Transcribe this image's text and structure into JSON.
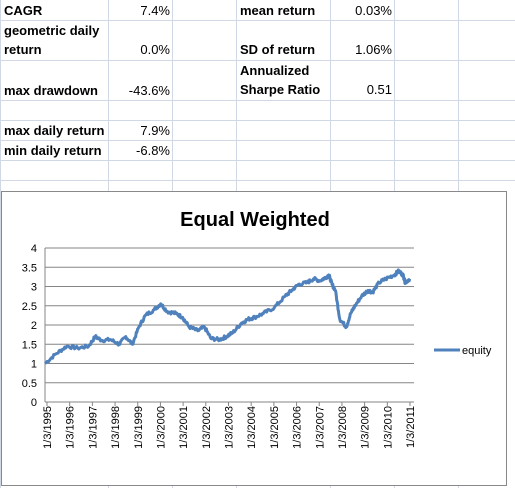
{
  "stats": {
    "cagr_label": "CAGR",
    "cagr_value": "7.4%",
    "geo_label_line1": "geometric daily",
    "geo_label_line2": "return",
    "geo_value": "0.0%",
    "maxdd_label": "max drawdown",
    "maxdd_value": "-43.6%",
    "maxret_label": "max daily return",
    "maxret_value": "7.9%",
    "minret_label": "min daily return",
    "minret_value": "-6.8%",
    "mean_label": "mean return",
    "mean_value": "0.03%",
    "sd_label": "SD of return",
    "sd_value": "1.06%",
    "sharpe_label_line1": "Annualized",
    "sharpe_label_line2": "Sharpe Ratio",
    "sharpe_value": "0.51"
  },
  "colors": {
    "series": "#4f81bd",
    "gridline": "#868686",
    "cell_grid": "#d0d7e5"
  },
  "chart_data": {
    "type": "line",
    "title": "Equal Weighted",
    "xlabel": "",
    "ylabel": "",
    "ylim": [
      0,
      4
    ],
    "yticks": [
      "0",
      "0.5",
      "1",
      "1.5",
      "2",
      "2.5",
      "3",
      "3.5",
      "4"
    ],
    "xticks": [
      "1/3/1995",
      "1/3/1996",
      "1/3/1997",
      "1/3/1998",
      "1/3/1999",
      "1/3/2000",
      "1/3/2001",
      "1/3/2002",
      "1/3/2003",
      "1/3/2004",
      "1/3/2005",
      "1/3/2006",
      "1/3/2007",
      "1/3/2008",
      "1/3/2009",
      "1/3/2010",
      "1/3/2011"
    ],
    "legend_position": "right",
    "grid": true,
    "series": [
      {
        "name": "equity",
        "x": [
          1995.0,
          1995.5,
          1996.0,
          1996.5,
          1997.0,
          1997.3,
          1997.6,
          1998.0,
          1998.4,
          1998.7,
          1999.0,
          1999.3,
          1999.6,
          2000.0,
          2000.3,
          2000.6,
          2001.0,
          2001.3,
          2001.6,
          2002.0,
          2002.3,
          2002.6,
          2003.0,
          2003.3,
          2003.6,
          2004.0,
          2004.3,
          2004.6,
          2005.0,
          2005.5,
          2006.0,
          2006.3,
          2006.6,
          2007.0,
          2007.3,
          2007.6,
          2007.9,
          2008.0,
          2008.15,
          2008.3,
          2008.5,
          2008.8,
          2009.0,
          2009.2,
          2009.5,
          2009.8,
          2010.0,
          2010.3,
          2010.6,
          2011.0,
          2011.2,
          2011.4,
          2011.5,
          2011.7
        ],
        "values": [
          1.0,
          1.25,
          1.45,
          1.4,
          1.45,
          1.7,
          1.6,
          1.62,
          1.5,
          1.7,
          1.5,
          1.95,
          2.25,
          2.4,
          2.55,
          2.35,
          2.3,
          2.2,
          1.95,
          1.85,
          1.95,
          1.65,
          1.62,
          1.7,
          1.8,
          2.05,
          2.15,
          2.2,
          2.3,
          2.45,
          2.75,
          2.9,
          3.05,
          3.1,
          3.2,
          3.15,
          3.25,
          3.3,
          3.05,
          2.9,
          2.15,
          1.95,
          2.3,
          2.5,
          2.75,
          2.9,
          2.85,
          3.1,
          3.2,
          3.3,
          3.4,
          3.3,
          3.1,
          3.2
        ]
      }
    ]
  }
}
